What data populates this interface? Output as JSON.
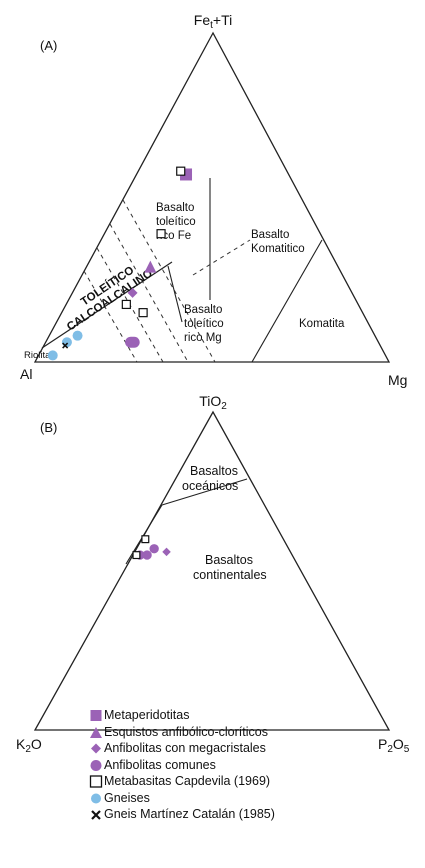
{
  "colors": {
    "purple": "#9b62b6",
    "blue": "#7fbde6",
    "line": "#222222",
    "dashed": "#333333"
  },
  "chart_data": [
    {
      "type": "scatter",
      "panel_label": "(A)",
      "vertices": {
        "top": "Fe",
        "top_subscript": "t",
        "top_suffix": "+Ti",
        "left": "Al",
        "right": "Mg"
      },
      "field_labels": {
        "toleitico": "TOLEÍTICO",
        "calcoalcalino": "CALCOALCALINO",
        "fe_line1": "Basalto",
        "fe_line2": "toleítico",
        "fe_line3": "rico Fe",
        "mg_line1": "Basalto",
        "mg_line2": "toleítico",
        "mg_line3": "rico Mg",
        "komatitico_line1": "Basalto",
        "komatitico_line2": "Komatitico",
        "komatita": "Komatita",
        "riolita": "Riolita"
      },
      "series": [
        {
          "name": "Metaperidotitas",
          "points": [
            [
              0.57,
              0.29,
              0.14
            ]
          ]
        },
        {
          "name": "Esquistos anfibólico-cloríticos",
          "points": [
            [
              0.29,
              0.53,
              0.18
            ]
          ]
        },
        {
          "name": "Anfibolitas con megacristales",
          "points": [
            [
              0.21,
              0.62,
              0.17
            ]
          ]
        },
        {
          "name": "Anfibolitas comunes",
          "points": [
            [
              0.06,
              0.7,
              0.24
            ],
            [
              0.06,
              0.69,
              0.25
            ],
            [
              0.06,
              0.695,
              0.245
            ]
          ]
        },
        {
          "name": "Metabasitas Capdevila (1969)",
          "points": [
            [
              0.15,
              0.62,
              0.23
            ],
            [
              0.175,
              0.655,
              0.17
            ],
            [
              0.39,
              0.45,
              0.16
            ],
            [
              0.58,
              0.3,
              0.12
            ]
          ]
        },
        {
          "name": "Gneises",
          "points": [
            [
              0.02,
              0.94,
              0.04
            ],
            [
              0.06,
              0.88,
              0.06
            ],
            [
              0.08,
              0.84,
              0.08
            ]
          ]
        },
        {
          "name": "Gneis Martínez Catalán (1985)",
          "points": [
            [
              0.05,
              0.89,
              0.06
            ]
          ]
        }
      ]
    },
    {
      "type": "scatter",
      "panel_label": "(B)",
      "vertices": {
        "top": "TiO",
        "top_subscript": "2",
        "left": "K",
        "left_subscript": "2",
        "left_suffix": "O",
        "right": "P",
        "right_subscript": "2",
        "right_mid": "O",
        "right_subscript2": "5"
      },
      "field_labels": {
        "oceanicos_line1": "Basaltos",
        "oceanicos_line2": "oceánicos",
        "continentales_line1": "Basaltos",
        "continentales_line2": "continentales"
      },
      "series": [
        {
          "name": "Anfibolitas con megacristales",
          "points": [
            [
              0.56,
              0.35,
              0.09
            ]
          ]
        },
        {
          "name": "Anfibolitas comunes",
          "points": [
            [
              0.57,
              0.38,
              0.05
            ],
            [
              0.55,
              0.43,
              0.02
            ],
            [
              0.55,
              0.41,
              0.04
            ]
          ]
        },
        {
          "name": "Metabasitas Capdevila (1969)",
          "points": [
            [
              0.6,
              0.39,
              0.01
            ],
            [
              0.55,
              0.44,
              0.01
            ]
          ]
        }
      ]
    }
  ],
  "legend": [
    {
      "symbol": "square",
      "label": "Metaperidotitas"
    },
    {
      "symbol": "triangle",
      "label": "Esquistos anfibólico-cloríticos"
    },
    {
      "symbol": "diamond",
      "label": "Anfibolitas con megacristales"
    },
    {
      "symbol": "circle",
      "label": "Anfibolitas comunes"
    },
    {
      "symbol": "open-square",
      "label": "Metabasitas Capdevila (1969)"
    },
    {
      "symbol": "blue-circle",
      "label": "Gneises"
    },
    {
      "symbol": "cross",
      "label": "Gneis Martínez Catalán (1985)"
    }
  ]
}
